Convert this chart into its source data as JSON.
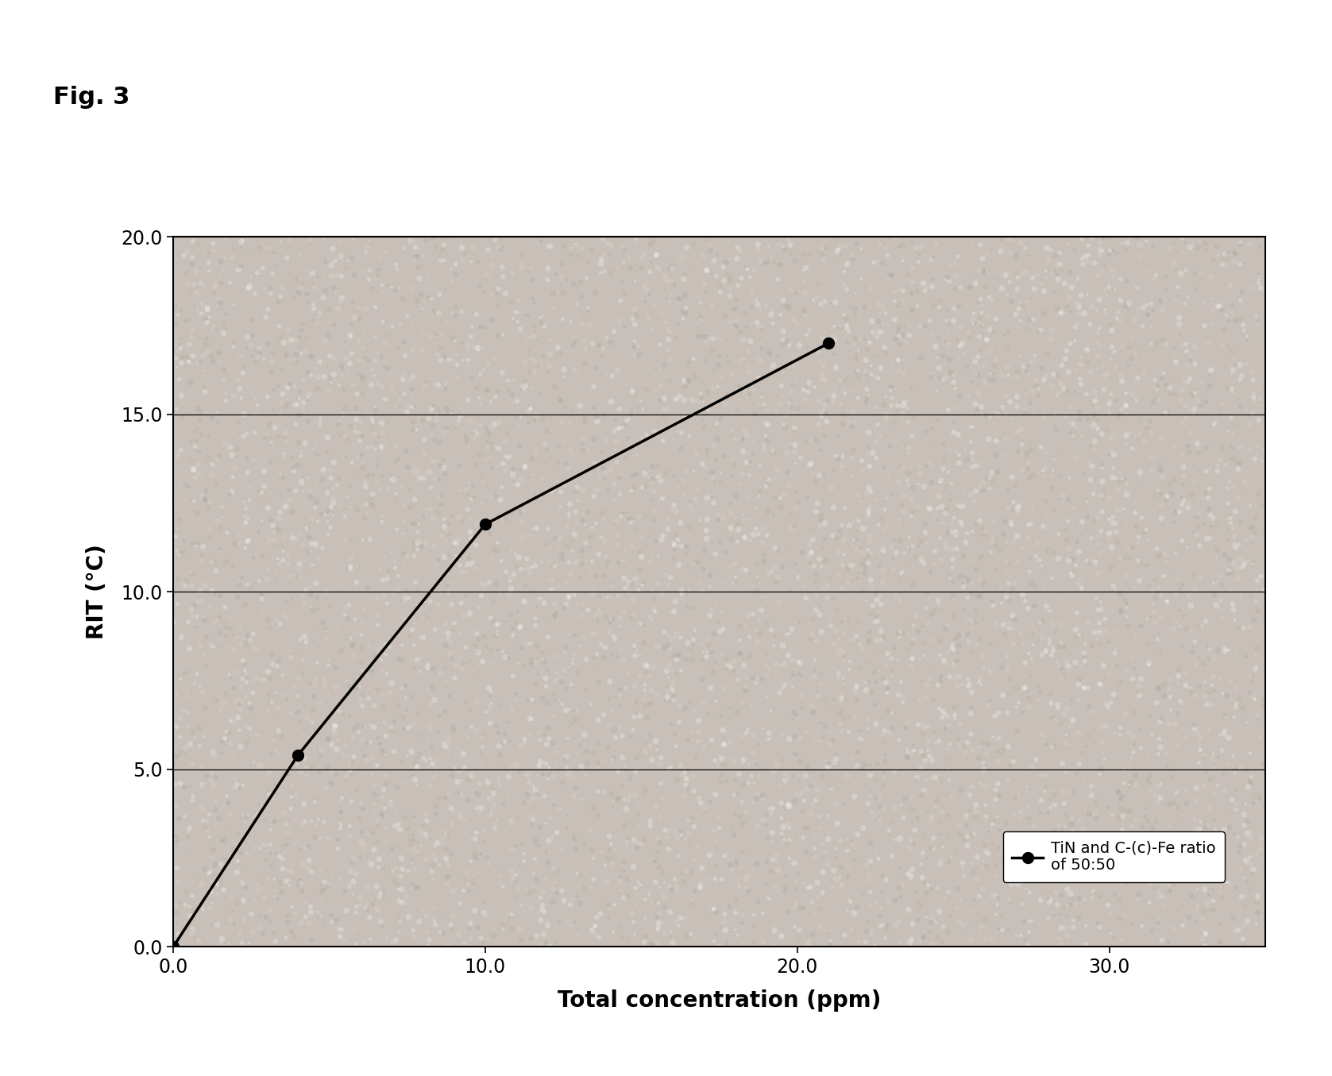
{
  "x_data": [
    0.0,
    4.0,
    10.0,
    21.0
  ],
  "y_data": [
    0.0,
    5.4,
    11.9,
    17.0
  ],
  "xlabel": "Total concentration (ppm)",
  "ylabel": "RIT (°C)",
  "xlim": [
    0.0,
    35.0
  ],
  "ylim": [
    0.0,
    20.0
  ],
  "xticks": [
    0.0,
    10.0,
    20.0,
    30.0
  ],
  "yticks": [
    0.0,
    5.0,
    10.0,
    15.0,
    20.0
  ],
  "xtick_labels": [
    "0.0",
    "10.0",
    "20.0",
    "30.0"
  ],
  "ytick_labels": [
    "0.0",
    "5.0",
    "10.0",
    "15.0",
    "20.0"
  ],
  "legend_label": "TiN and C-(c)-Fe ratio\nof 50:50",
  "fig_label": "Fig. 3",
  "line_color": "#000000",
  "marker_color": "#000000",
  "marker_size": 10,
  "line_width": 2.5,
  "background_color": "#ffffff",
  "plot_bg_color": "#c8c0b8",
  "xlabel_fontsize": 20,
  "ylabel_fontsize": 20,
  "tick_fontsize": 17,
  "legend_fontsize": 14,
  "fig_label_fontsize": 22,
  "figsize": [
    16.77,
    13.55
  ],
  "dpi": 100
}
